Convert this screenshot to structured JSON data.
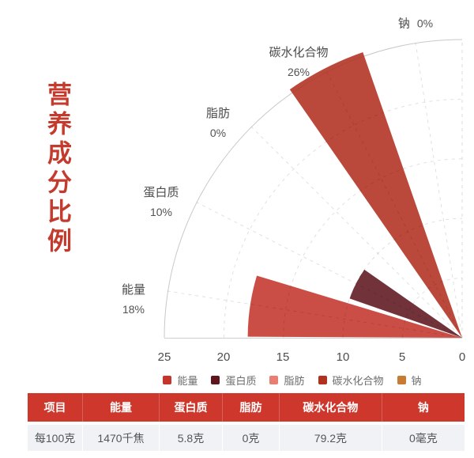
{
  "page": {
    "title": "营养成分比例"
  },
  "chart_data": {
    "type": "polar-rose-bar",
    "title": "营养成分比例",
    "categories": [
      "能量",
      "蛋白质",
      "脂肪",
      "碳水化合物",
      "钠"
    ],
    "values": [
      18,
      10,
      0,
      26,
      0
    ],
    "value_labels": [
      "18%",
      "10%",
      "0%",
      "26%",
      "0%"
    ],
    "radial_ticks": [
      "25",
      "20",
      "15",
      "10",
      "5",
      "0"
    ],
    "radial_max": 25,
    "angle_span_deg": 90,
    "colors": [
      "#c4362c",
      "#5d161f",
      "#e87f72",
      "#b23020",
      "#c87c33"
    ],
    "sector_opacity": 0.88,
    "grid": "dashed",
    "legend_position": "bottom"
  },
  "table": {
    "headers": [
      "项目",
      "能量",
      "蛋白质",
      "脂肪",
      "碳水化合物",
      "钠"
    ],
    "rows": [
      [
        "每100克",
        "1470千焦",
        "5.8克",
        "0克",
        "79.2克",
        "0毫克"
      ]
    ]
  }
}
